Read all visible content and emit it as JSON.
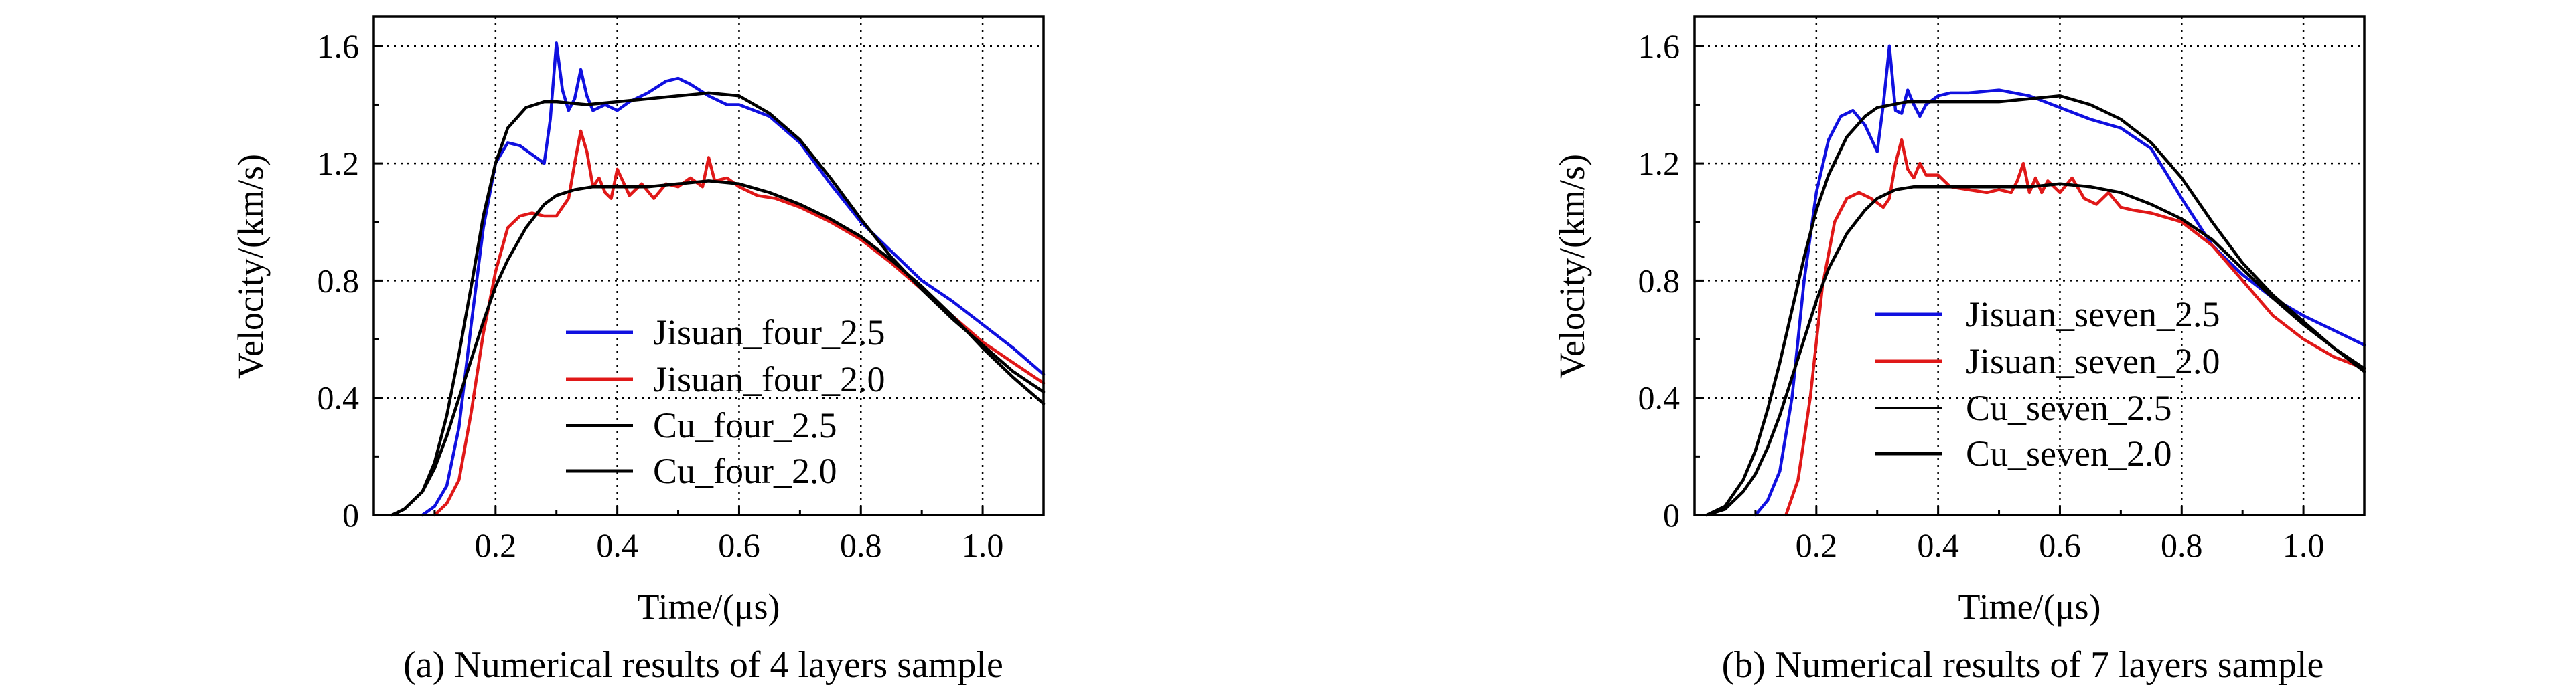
{
  "colors": {
    "blue": "#1010e0",
    "red": "#e01818",
    "black": "#000000"
  },
  "chart_data": [
    {
      "type": "line",
      "panel": "a",
      "caption": "(a)  Numerical results of 4 layers sample",
      "xlabel": "Time/(μs)",
      "ylabel": "Velocity/(km/s)",
      "xlim": [
        0,
        1.1
      ],
      "ylim": [
        0,
        1.7
      ],
      "xticks": [
        0.2,
        0.4,
        0.6,
        0.8,
        1.0
      ],
      "xtick_labels": [
        "0.2",
        "0.4",
        "0.6",
        "0.8",
        "1.0"
      ],
      "yticks": [
        0,
        0.4,
        0.8,
        1.2,
        1.6
      ],
      "ytick_labels": [
        "0",
        "0.4",
        "0.8",
        "1.2",
        "1.6"
      ],
      "grid": true,
      "legend_position": "lower-middle",
      "series": [
        {
          "name": "Jisuan_four_2.5",
          "color": "#1010e0",
          "x": [
            0.08,
            0.1,
            0.12,
            0.14,
            0.16,
            0.18,
            0.2,
            0.22,
            0.24,
            0.26,
            0.28,
            0.29,
            0.3,
            0.31,
            0.32,
            0.33,
            0.34,
            0.35,
            0.36,
            0.38,
            0.4,
            0.42,
            0.45,
            0.48,
            0.5,
            0.52,
            0.55,
            0.58,
            0.6,
            0.65,
            0.7,
            0.75,
            0.8,
            0.85,
            0.9,
            0.95,
            1.0,
            1.05,
            1.1
          ],
          "y": [
            0,
            0.03,
            0.1,
            0.3,
            0.65,
            0.98,
            1.2,
            1.27,
            1.26,
            1.23,
            1.2,
            1.35,
            1.61,
            1.45,
            1.38,
            1.42,
            1.52,
            1.43,
            1.38,
            1.4,
            1.38,
            1.41,
            1.44,
            1.48,
            1.49,
            1.47,
            1.43,
            1.4,
            1.4,
            1.36,
            1.27,
            1.13,
            1.0,
            0.9,
            0.8,
            0.73,
            0.65,
            0.57,
            0.48
          ]
        },
        {
          "name": "Jisuan_four_2.0",
          "color": "#e01818",
          "x": [
            0.1,
            0.12,
            0.14,
            0.16,
            0.18,
            0.2,
            0.22,
            0.24,
            0.26,
            0.28,
            0.3,
            0.31,
            0.32,
            0.33,
            0.34,
            0.35,
            0.36,
            0.37,
            0.38,
            0.39,
            0.4,
            0.42,
            0.44,
            0.46,
            0.48,
            0.5,
            0.52,
            0.54,
            0.55,
            0.56,
            0.58,
            0.6,
            0.63,
            0.66,
            0.7,
            0.75,
            0.8,
            0.85,
            0.9,
            0.95,
            1.0,
            1.05,
            1.1
          ],
          "y": [
            0,
            0.04,
            0.12,
            0.35,
            0.62,
            0.83,
            0.98,
            1.02,
            1.03,
            1.02,
            1.02,
            1.05,
            1.08,
            1.2,
            1.31,
            1.24,
            1.12,
            1.15,
            1.1,
            1.08,
            1.18,
            1.09,
            1.13,
            1.08,
            1.13,
            1.12,
            1.15,
            1.12,
            1.22,
            1.14,
            1.15,
            1.12,
            1.09,
            1.08,
            1.05,
            1.0,
            0.94,
            0.86,
            0.77,
            0.68,
            0.59,
            0.52,
            0.45
          ]
        },
        {
          "name": "Cu_four_2.5",
          "color": "#000000",
          "x": [
            0.03,
            0.05,
            0.08,
            0.1,
            0.12,
            0.14,
            0.16,
            0.18,
            0.2,
            0.22,
            0.25,
            0.28,
            0.3,
            0.35,
            0.4,
            0.45,
            0.5,
            0.55,
            0.6,
            0.65,
            0.7,
            0.75,
            0.8,
            0.85,
            0.9,
            0.95,
            1.0,
            1.05,
            1.1
          ],
          "y": [
            0,
            0.02,
            0.08,
            0.18,
            0.34,
            0.55,
            0.78,
            1.02,
            1.2,
            1.32,
            1.39,
            1.41,
            1.41,
            1.4,
            1.41,
            1.42,
            1.43,
            1.44,
            1.43,
            1.37,
            1.28,
            1.15,
            1.01,
            0.88,
            0.77,
            0.67,
            0.58,
            0.49,
            0.42
          ]
        },
        {
          "name": "Cu_four_2.0",
          "color": "#000000",
          "x": [
            0.03,
            0.05,
            0.08,
            0.1,
            0.12,
            0.14,
            0.16,
            0.18,
            0.2,
            0.22,
            0.25,
            0.28,
            0.3,
            0.33,
            0.36,
            0.4,
            0.45,
            0.5,
            0.55,
            0.6,
            0.65,
            0.7,
            0.75,
            0.8,
            0.85,
            0.9,
            0.95,
            1.0,
            1.05,
            1.1
          ],
          "y": [
            0,
            0.02,
            0.08,
            0.16,
            0.27,
            0.4,
            0.53,
            0.66,
            0.78,
            0.87,
            0.98,
            1.06,
            1.09,
            1.11,
            1.12,
            1.12,
            1.12,
            1.13,
            1.14,
            1.13,
            1.1,
            1.06,
            1.01,
            0.95,
            0.87,
            0.78,
            0.68,
            0.57,
            0.47,
            0.38
          ]
        }
      ]
    },
    {
      "type": "line",
      "panel": "b",
      "caption": "(b)  Numerical results of 7 layers sample",
      "xlabel": "Time/(μs)",
      "ylabel": "Velocity/(km/s)",
      "xlim": [
        0,
        1.1
      ],
      "ylim": [
        0,
        1.7
      ],
      "xticks": [
        0.2,
        0.4,
        0.6,
        0.8,
        1.0
      ],
      "xtick_labels": [
        "0.2",
        "0.4",
        "0.6",
        "0.8",
        "1.0"
      ],
      "yticks": [
        0,
        0.4,
        0.8,
        1.2,
        1.6
      ],
      "ytick_labels": [
        "0",
        "0.4",
        "0.8",
        "1.2",
        "1.6"
      ],
      "grid": true,
      "legend_position": "lower-middle",
      "series": [
        {
          "name": "Jisuan_seven_2.5",
          "color": "#1010e0",
          "x": [
            0.1,
            0.12,
            0.14,
            0.16,
            0.18,
            0.2,
            0.22,
            0.24,
            0.26,
            0.28,
            0.3,
            0.31,
            0.32,
            0.33,
            0.34,
            0.35,
            0.36,
            0.37,
            0.38,
            0.4,
            0.42,
            0.45,
            0.5,
            0.55,
            0.6,
            0.65,
            0.7,
            0.75,
            0.8,
            0.85,
            0.9,
            0.95,
            1.0,
            1.05,
            1.1
          ],
          "y": [
            0,
            0.05,
            0.15,
            0.4,
            0.8,
            1.1,
            1.28,
            1.36,
            1.38,
            1.33,
            1.24,
            1.4,
            1.6,
            1.38,
            1.37,
            1.45,
            1.4,
            1.36,
            1.4,
            1.43,
            1.44,
            1.44,
            1.45,
            1.43,
            1.39,
            1.35,
            1.32,
            1.25,
            1.08,
            0.92,
            0.82,
            0.74,
            0.68,
            0.63,
            0.58
          ]
        },
        {
          "name": "Jisuan_seven_2.0",
          "color": "#e01818",
          "x": [
            0.15,
            0.17,
            0.19,
            0.21,
            0.23,
            0.25,
            0.27,
            0.29,
            0.31,
            0.32,
            0.33,
            0.34,
            0.35,
            0.36,
            0.37,
            0.38,
            0.4,
            0.42,
            0.45,
            0.48,
            0.5,
            0.52,
            0.53,
            0.54,
            0.55,
            0.56,
            0.57,
            0.58,
            0.6,
            0.62,
            0.64,
            0.66,
            0.68,
            0.7,
            0.72,
            0.75,
            0.8,
            0.85,
            0.9,
            0.95,
            1.0,
            1.05,
            1.1
          ],
          "y": [
            0,
            0.12,
            0.4,
            0.78,
            1.0,
            1.08,
            1.1,
            1.08,
            1.05,
            1.08,
            1.2,
            1.28,
            1.18,
            1.15,
            1.2,
            1.16,
            1.16,
            1.12,
            1.11,
            1.1,
            1.11,
            1.1,
            1.14,
            1.2,
            1.1,
            1.15,
            1.1,
            1.14,
            1.1,
            1.15,
            1.08,
            1.06,
            1.1,
            1.05,
            1.04,
            1.03,
            1.0,
            0.92,
            0.8,
            0.68,
            0.6,
            0.54,
            0.5
          ]
        },
        {
          "name": "Cu_seven_2.5",
          "color": "#000000",
          "x": [
            0.02,
            0.05,
            0.08,
            0.1,
            0.12,
            0.14,
            0.16,
            0.18,
            0.2,
            0.22,
            0.25,
            0.28,
            0.3,
            0.35,
            0.4,
            0.45,
            0.5,
            0.55,
            0.6,
            0.65,
            0.7,
            0.75,
            0.8,
            0.85,
            0.9,
            0.95,
            1.0,
            1.05,
            1.1
          ],
          "y": [
            0,
            0.03,
            0.12,
            0.22,
            0.36,
            0.52,
            0.7,
            0.88,
            1.04,
            1.16,
            1.29,
            1.36,
            1.39,
            1.41,
            1.41,
            1.41,
            1.41,
            1.42,
            1.43,
            1.4,
            1.35,
            1.27,
            1.15,
            1.0,
            0.86,
            0.75,
            0.66,
            0.57,
            0.49
          ]
        },
        {
          "name": "Cu_seven_2.0",
          "color": "#000000",
          "x": [
            0.02,
            0.05,
            0.08,
            0.1,
            0.12,
            0.14,
            0.16,
            0.18,
            0.2,
            0.22,
            0.25,
            0.28,
            0.3,
            0.33,
            0.36,
            0.4,
            0.45,
            0.5,
            0.55,
            0.6,
            0.65,
            0.7,
            0.75,
            0.8,
            0.85,
            0.9,
            0.95,
            1.0,
            1.05,
            1.1
          ],
          "y": [
            0,
            0.02,
            0.08,
            0.14,
            0.23,
            0.34,
            0.47,
            0.6,
            0.73,
            0.84,
            0.96,
            1.04,
            1.08,
            1.11,
            1.12,
            1.12,
            1.12,
            1.12,
            1.12,
            1.13,
            1.12,
            1.1,
            1.06,
            1.01,
            0.94,
            0.84,
            0.74,
            0.65,
            0.57,
            0.5
          ]
        }
      ]
    }
  ]
}
